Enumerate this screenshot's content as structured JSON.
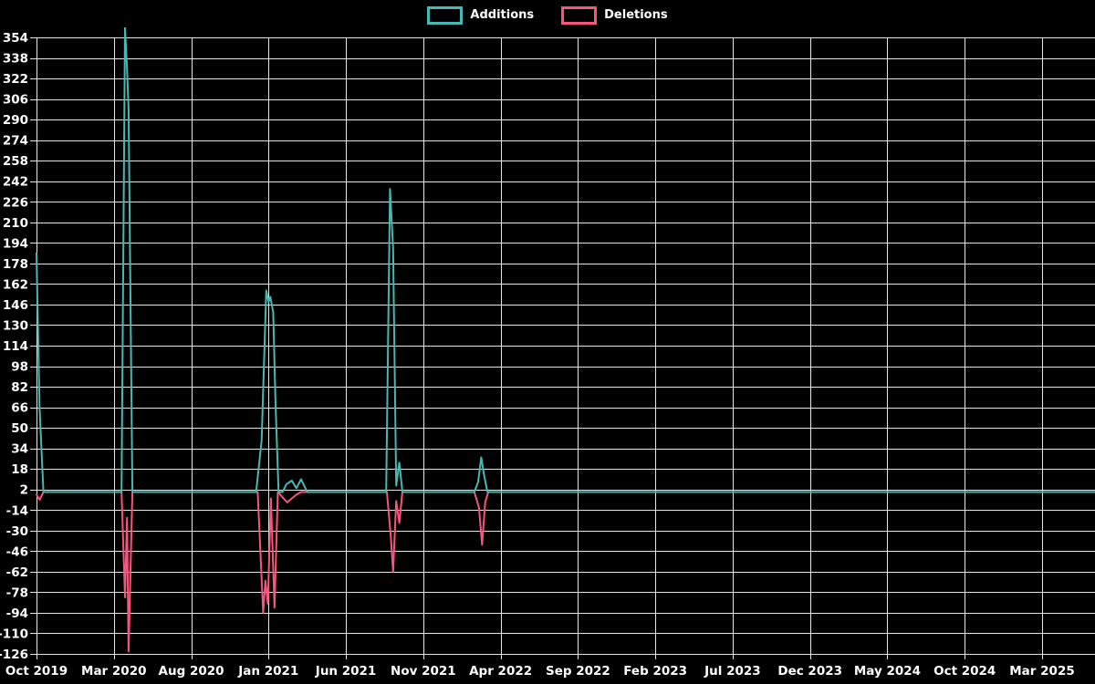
{
  "legend": {
    "items": [
      {
        "label": "Additions",
        "color": "#47b8b3"
      },
      {
        "label": "Deletions",
        "color": "#f8547e"
      }
    ]
  },
  "colors": {
    "background": "#000000",
    "gridline": "#e6e6e6",
    "tick_text": "#ffffff",
    "additions": "#47b8b3",
    "deletions": "#f8547e"
  },
  "chart_data": {
    "type": "line",
    "title": "",
    "xlabel": "",
    "ylabel": "",
    "legend_position": "top-center",
    "grid": "on",
    "ylim": [
      -126,
      354
    ],
    "y_tick_step": 16,
    "y_ticks": [
      354,
      338,
      322,
      306,
      290,
      274,
      258,
      242,
      226,
      210,
      194,
      178,
      162,
      146,
      130,
      114,
      98,
      82,
      66,
      50,
      34,
      18,
      2,
      -14,
      -30,
      -46,
      -62,
      -78,
      -94,
      -110,
      -126
    ],
    "x_tick_labels": [
      "Oct 2019",
      "Mar 2020",
      "Aug 2020",
      "Jan 2021",
      "Jun 2021",
      "Nov 2021",
      "Apr 2022",
      "Sep 2022",
      "Feb 2023",
      "Jul 2023",
      "Dec 2023",
      "May 2024",
      "Oct 2024",
      "Mar 2025"
    ],
    "x_unit": "months since Oct 2019 (axis labels every 5 months)",
    "notes": "Weekly additions/deletions activity; Mar 2020 additions spike is clipped at the top of the plot (exceeds 354); baseline value is 0 for both series.",
    "series": [
      {
        "name": "Additions",
        "color": "#47b8b3",
        "points": [
          [
            0,
            186
          ],
          [
            0.2,
            65
          ],
          [
            0.45,
            0
          ],
          [
            5.5,
            0
          ],
          [
            5.72,
            362
          ],
          [
            5.85,
            330
          ],
          [
            5.95,
            298
          ],
          [
            6.2,
            0
          ],
          [
            14.2,
            0
          ],
          [
            14.55,
            40
          ],
          [
            14.85,
            157
          ],
          [
            15.0,
            148
          ],
          [
            15.12,
            152
          ],
          [
            15.3,
            140
          ],
          [
            15.45,
            70
          ],
          [
            15.65,
            0
          ],
          [
            15.9,
            0
          ],
          [
            16.15,
            6
          ],
          [
            16.5,
            9
          ],
          [
            16.8,
            3
          ],
          [
            17.1,
            10
          ],
          [
            17.5,
            0
          ],
          [
            22.6,
            0
          ],
          [
            22.85,
            236
          ],
          [
            23.05,
            190
          ],
          [
            23.25,
            5
          ],
          [
            23.45,
            23
          ],
          [
            23.65,
            0
          ],
          [
            28.3,
            0
          ],
          [
            28.55,
            8
          ],
          [
            28.75,
            27
          ],
          [
            28.95,
            12
          ],
          [
            29.15,
            0
          ],
          [
            68.4,
            0
          ]
        ]
      },
      {
        "name": "Deletions",
        "color": "#f8547e",
        "points": [
          [
            0,
            -2
          ],
          [
            0.2,
            -6
          ],
          [
            0.45,
            0
          ],
          [
            5.5,
            0
          ],
          [
            5.72,
            -82
          ],
          [
            5.85,
            -20
          ],
          [
            5.95,
            -124
          ],
          [
            6.2,
            0
          ],
          [
            14.3,
            0
          ],
          [
            14.65,
            -94
          ],
          [
            14.8,
            -69
          ],
          [
            14.95,
            -87
          ],
          [
            15.15,
            -5
          ],
          [
            15.38,
            -90
          ],
          [
            15.6,
            0
          ],
          [
            15.9,
            -4
          ],
          [
            16.2,
            -8
          ],
          [
            16.5,
            -5
          ],
          [
            16.8,
            -2
          ],
          [
            17.1,
            0
          ],
          [
            22.65,
            0
          ],
          [
            22.9,
            -34
          ],
          [
            23.05,
            -62
          ],
          [
            23.25,
            -7
          ],
          [
            23.45,
            -24
          ],
          [
            23.65,
            0
          ],
          [
            28.3,
            0
          ],
          [
            28.6,
            -12
          ],
          [
            28.8,
            -41
          ],
          [
            29.0,
            -8
          ],
          [
            29.2,
            0
          ],
          [
            68.4,
            0
          ]
        ]
      }
    ]
  }
}
